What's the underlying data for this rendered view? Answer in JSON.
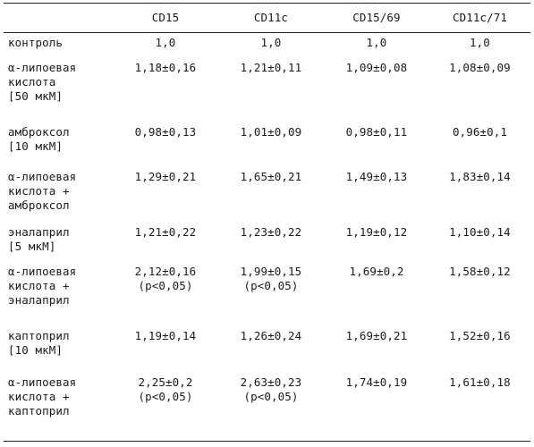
{
  "table": {
    "headers": [
      "",
      "CD15",
      "CD11c",
      "CD15/69",
      "CD11c/71"
    ],
    "rows": [
      {
        "label": [
          "контроль"
        ],
        "values": [
          [
            "1,0"
          ],
          [
            "1,0"
          ],
          [
            "1,0"
          ],
          [
            "1,0"
          ]
        ]
      },
      {
        "label": [
          "α-липоевая",
          "кислота",
          "[50 мкМ]"
        ],
        "values": [
          [
            "1,18±0,16"
          ],
          [
            "1,21±0,11"
          ],
          [
            "1,09±0,08"
          ],
          [
            "1,08±0,09"
          ]
        ]
      },
      {
        "label": [
          "амброксол",
          "[10 мкМ]"
        ],
        "values": [
          [
            "0,98±0,13"
          ],
          [
            "1,01±0,09"
          ],
          [
            "0,98±0,11"
          ],
          [
            "0,96±0,1"
          ]
        ]
      },
      {
        "label": [
          "α-липоевая",
          "кислота +",
          "амброксол"
        ],
        "values": [
          [
            "1,29±0,21"
          ],
          [
            "1,65±0,21"
          ],
          [
            "1,49±0,13"
          ],
          [
            "1,83±0,14"
          ]
        ]
      },
      {
        "label": [
          "эналаприл",
          "[5 мкМ]"
        ],
        "values": [
          [
            "1,21±0,22"
          ],
          [
            "1,23±0,22"
          ],
          [
            "1,19±0,12"
          ],
          [
            "1,10±0,14"
          ]
        ]
      },
      {
        "label": [
          "α-липоевая",
          "кислота +",
          "эналаприл"
        ],
        "values": [
          [
            "2,12±0,16",
            "(p<0,05)"
          ],
          [
            "1,99±0,15",
            "(p<0,05)"
          ],
          [
            "1,69±0,2"
          ],
          [
            "1,58±0,12"
          ]
        ]
      },
      {
        "label": [
          "каптоприл",
          "[10 мкМ]"
        ],
        "values": [
          [
            "1,19±0,14"
          ],
          [
            "1,26±0,24"
          ],
          [
            "1,69±0,21"
          ],
          [
            "1,52±0,16"
          ]
        ]
      },
      {
        "label": [
          "α-липоевая",
          "кислота +",
          "каптоприл"
        ],
        "values": [
          [
            "2,25±0,2",
            "(p<0,05)"
          ],
          [
            "2,63±0,23",
            "(p<0,05)"
          ],
          [
            "1,74±0,19"
          ],
          [
            "1,61±0,18"
          ]
        ]
      }
    ]
  }
}
